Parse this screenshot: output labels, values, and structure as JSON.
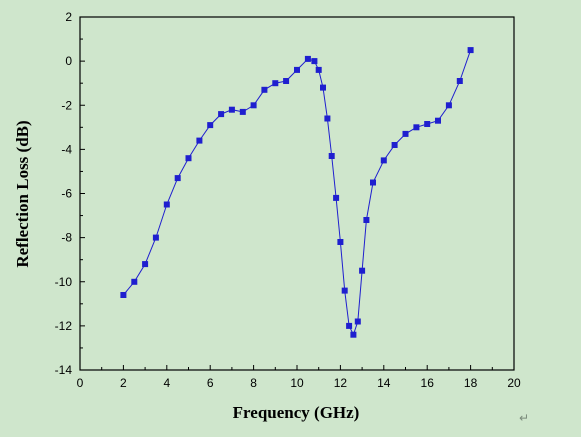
{
  "chart_data": {
    "type": "line",
    "title": "",
    "xlabel": "Frequency   (GHz)",
    "ylabel": "Reflection  Loss  (dB)",
    "xlim": [
      0,
      20
    ],
    "ylim": [
      -14,
      2
    ],
    "xticks": [
      "0",
      "2",
      "4",
      "6",
      "8",
      "10",
      "12",
      "14",
      "16",
      "18",
      "20"
    ],
    "yticks": [
      "2",
      "0",
      "-2",
      "-4",
      "-6",
      "-8",
      "-10",
      "-12",
      "-14"
    ],
    "grid": false,
    "legend": "none",
    "series": [
      {
        "marker": "square",
        "color": "#1f1fcf",
        "x": [
          2.0,
          2.5,
          3.0,
          3.5,
          4.0,
          4.5,
          5.0,
          5.5,
          6.0,
          6.5,
          7.0,
          7.5,
          8.0,
          8.5,
          9.0,
          9.5,
          10.0,
          10.5,
          10.8,
          11.0,
          11.2,
          11.4,
          11.6,
          11.8,
          12.0,
          12.2,
          12.4,
          12.6,
          12.8,
          13.0,
          13.2,
          13.5,
          14.0,
          14.5,
          15.0,
          15.5,
          16.0,
          16.5,
          17.0,
          17.5,
          18.0
        ],
        "y": [
          -10.6,
          -10.0,
          -9.2,
          -8.0,
          -6.5,
          -5.3,
          -4.4,
          -3.6,
          -2.9,
          -2.4,
          -2.2,
          -2.3,
          -2.0,
          -1.3,
          -1.0,
          -0.9,
          -0.4,
          0.1,
          0.0,
          -0.4,
          -1.2,
          -2.6,
          -4.3,
          -6.2,
          -8.2,
          -10.4,
          -12.0,
          -12.4,
          -11.8,
          -9.5,
          -7.2,
          -5.5,
          -4.5,
          -3.8,
          -3.3,
          -3.0,
          -2.85,
          -2.7,
          -2.0,
          -0.9,
          0.5
        ]
      }
    ]
  },
  "annotation": {
    "return_symbol": "↵"
  }
}
